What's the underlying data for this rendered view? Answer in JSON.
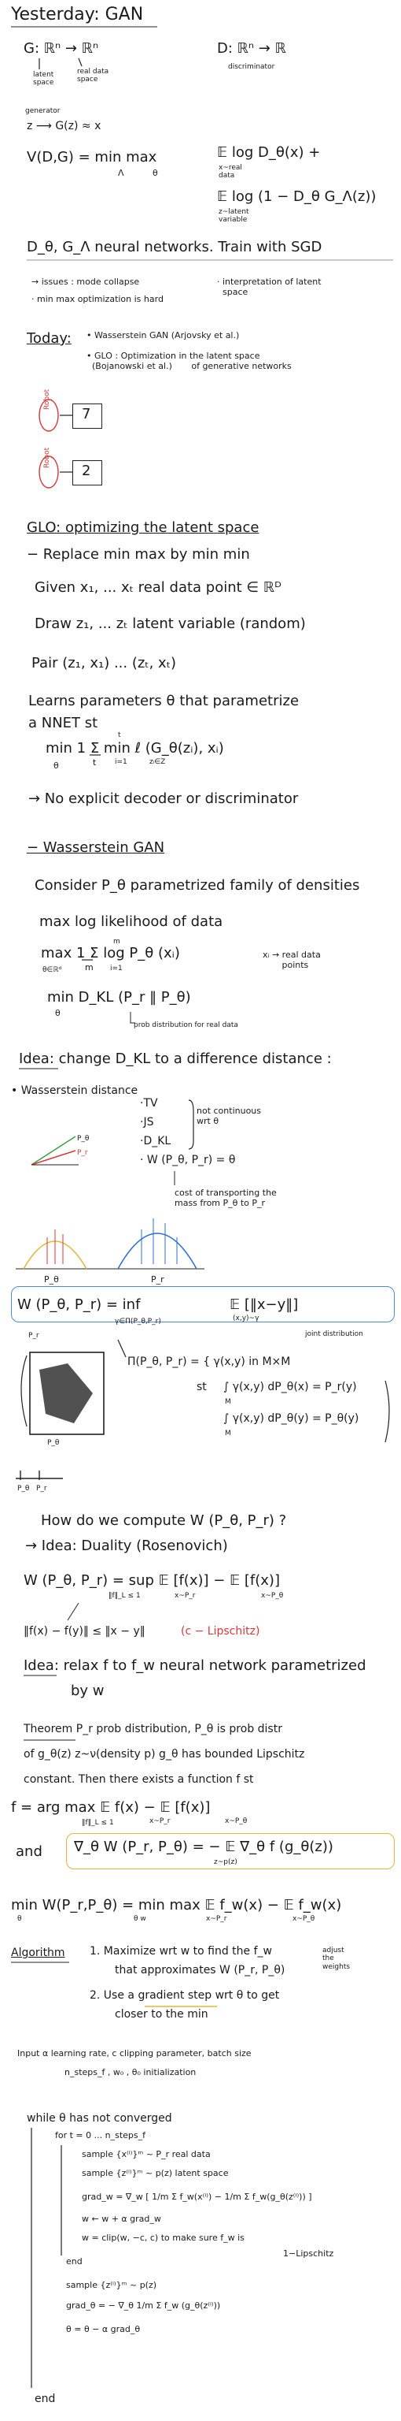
{
  "title": "Yesterday: GAN",
  "gan": {
    "G_def": "G: ℝⁿ → ℝⁿ",
    "latent_space": "latent\nspace",
    "real_data_space": "real data\nspace",
    "D_def": "D: ℝⁿ → ℝ",
    "discriminator": "discriminator",
    "generator": "generator",
    "generator_map": "z ⟶ G(z) ≈ x",
    "value_fn": "V(D,G) = min  max",
    "min_sub": "Λ",
    "max_sub": "θ",
    "term1": "𝔼   log D_θ(x)  +",
    "term1_sub": "x~real\ndata",
    "term2": "𝔼   log (1 − D_θ G_Λ(z))",
    "term2_sub": "z~latent\nvariable"
  },
  "nets": "D_θ, G_Λ  neural networks.  Train with SGD",
  "issues": {
    "a": "→ issues : mode collapse",
    "b": "· interpretation of latent\n  space",
    "c": "· min max optimization is hard"
  },
  "today": {
    "label": "Today:",
    "item1": "• Wasserstein GAN  (Arjovsky et al.)",
    "item2": "• GLO : Optimization in the latent space\n  (Bojanowski et al.)       of generative networks",
    "robot_a": "Robot",
    "robot_b": "Robot",
    "num_a": "7",
    "num_b": "2"
  },
  "glo": {
    "heading": "GLO: optimizing the latent space",
    "replace": "− Replace  min max  by  min min",
    "given": "Given   x₁, ... xₜ  real data point ∈ ℝᴰ",
    "draw": "Draw    z₁, ... zₜ  latent variable (random)",
    "pair": "Pair  (z₁, x₁) ... (zₜ, xₜ)",
    "learn": "Learns parameters θ that parametrize",
    "nnet": "a NNET    st",
    "obj": "min   1   Σ   min   ℓ (G_θ(zᵢ), xᵢ)",
    "obj_theta": "θ",
    "obj_t": "t",
    "obj_i": "i=1",
    "obj_tt": "t",
    "obj_z": "zᵢ∈Z",
    "no_decoder": "→ No explicit decoder or discriminator"
  },
  "wgan": {
    "heading": "− Wasserstein GAN",
    "consider": "Consider  P_θ  parametrized family of densities",
    "maxlik": "max  log likelihood of data",
    "max_eq": "max   1   Σ   log P_θ (xᵢ)",
    "max_sub": "θ∈ℝᵈ",
    "max_m": "m",
    "max_i": "i=1",
    "max_mm": "m",
    "xi_real": "xᵢ → real data\n       points",
    "kl": "min   D_KL (P_r ‖ P_θ)",
    "kl_sub": "θ",
    "prob_dist": "prob distribution for real data",
    "idea_change": "Idea: change D_KL to a difference distance :",
    "wdist": "• Wasserstein distance",
    "tv": "·TV",
    "js": "·JS",
    "dkl": "·D_KL",
    "not_cont": "not continuous\nwrt θ",
    "w_eq": "· W (P_θ, P_r) = θ",
    "cost": "cost of transporting the\nmass from P_θ to P_r",
    "p_theta": "P_θ",
    "p_r": "P_r",
    "p_theta2": "P_θ",
    "w_def": "W (P_θ, P_r) = inf",
    "w_inf_sub": "γ∈Π(P_θ,P_r)",
    "w_exp": "𝔼        [‖x−y‖]",
    "w_exp_sub": "(x,y)~γ",
    "joint_note": "joint distribution",
    "pi_def": "Π(P_θ, P_r) = { γ(x,y)  in M×M",
    "st": "st",
    "marg1": "∫ γ(x,y) dP_θ(x) = P_r(y)",
    "marg2": "∫ γ(x,y) dP_θ(y) = P_θ(y)",
    "marg_m1": "M",
    "marg_m2": "M",
    "pr_label": "P_r",
    "pt_label": "P_θ",
    "axis_p": "P_θ",
    "axis_r": "P_r",
    "howcompute": "How do we compute  W (P_θ, P_r) ?",
    "duality": "→ Idea:  Duality  (Rosenovich)",
    "dual_eq": "W (P_θ, P_r) = sup    𝔼 [f(x)] − 𝔼 [f(x)]",
    "dual_sub": "‖f‖_L ≤ 1",
    "dual_s1": "x~P_r",
    "dual_s2": "x~P_θ",
    "lip": "‖f(x) − f(y)‖ ≤ ‖x − y‖",
    "lip_c": "(c − Lipschitz)",
    "idea_relax": "Idea:  relax  f  to  f_w  neural network parametrized",
    "by_w": "by  w",
    "theorem1": "Theorem  P_r prob distribution,  P_θ is prob distr",
    "theorem2": "of  g_θ(z)  z~ν(density p)  g_θ has bounded Lipschitz",
    "theorem3": "constant.  Then there exists a function f  st",
    "f_argmax": "f = arg max     𝔼   f(x) − 𝔼   [f(x)]",
    "f_argmax_sub": "‖f‖_L ≤ 1",
    "f_s1": "x~P_r",
    "f_s2": "x~P_θ",
    "and": "and",
    "grad_eq": "∇_θ W (P_r, P_θ) = − 𝔼     ∇_θ f (g_θ(z))",
    "grad_sub": "z~p(z)",
    "minmax": "min  W(P_r,P_θ) = min max   𝔼  f_w(x) −  𝔼   f_w(x)",
    "minmax_t": "θ",
    "minmax_t2": "θ   w",
    "minmax_s1": "x~P_r",
    "minmax_s2": "x~P_θ"
  },
  "algorithm": {
    "label": "Algorithm",
    "step1": "1. Maximize wrt w to find the f_w",
    "step1b": "that approximates W (P_r, P_θ)",
    "note_weights": "adjust\nthe\nweights",
    "step2": "2. Use a gradient step wrt θ to get",
    "step2b": "closer to the min",
    "input1": "Input  α learning rate, c clipping parameter, batch size",
    "input2": "n_steps_f ,   w₀ , θ₀ initialization",
    "while": "while  θ has not converged",
    "for": "for  t = 0 ... n_steps_f",
    "sample_x": "sample {x⁽ⁱ⁾}ᵐ ~ P_r  real data",
    "sample_z": "sample {z⁽ⁱ⁾}ᵐ ~ p(z)  latent space",
    "grad_w": "grad_w = ∇_w [ 1/m Σ f_w(x⁽ⁱ⁾) − 1/m Σ f_w(g_θ(z⁽ⁱ⁾)) ]",
    "w_update": "w ← w + α grad_w",
    "clip": "w = clip(w, −c, c)   to make sure f_w is",
    "lip1": "1−Lipschitz",
    "end_for": "end",
    "sample_z2": "sample {z⁽ⁱ⁾}ᵐ ~ p(z)",
    "grad_t": "grad_θ = − ∇_θ 1/m Σ f_w (g_θ(z⁽ⁱ⁾))",
    "t_update": "θ = θ − α grad_θ",
    "end_while": "end"
  }
}
